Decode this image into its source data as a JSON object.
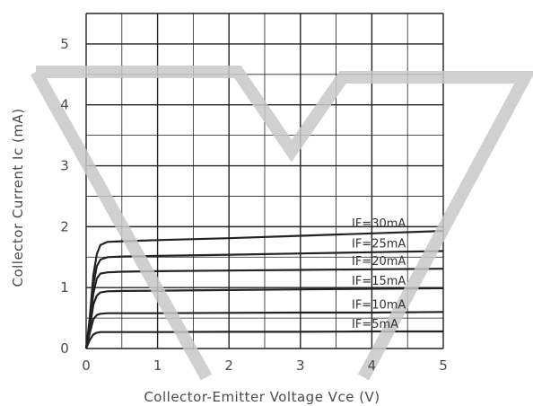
{
  "colors": {
    "background": "#ffffff",
    "grid": "#222222",
    "curves": "#222222",
    "text": "#4a4a4a",
    "watermark": "#c8c8c8"
  },
  "chart_data": {
    "type": "line",
    "title": "",
    "xlabel": "Collector-Emitter Voltage Vce (V)",
    "ylabel": "Collector Current Ic (mA)",
    "xlim": [
      0,
      5
    ],
    "ylim": [
      0,
      5.5
    ],
    "x_ticks": [
      "0",
      "1",
      "2",
      "3",
      "4",
      "5"
    ],
    "y_ticks": [
      "0",
      "1",
      "2",
      "3",
      "4",
      "5"
    ],
    "grid": true,
    "series": [
      {
        "name": "IF=30mA",
        "x": [
          0,
          0.05,
          0.1,
          0.15,
          0.2,
          0.3,
          0.5,
          1,
          2,
          3,
          4,
          5
        ],
        "y": [
          0,
          0.5,
          1.2,
          1.55,
          1.7,
          1.75,
          1.76,
          1.78,
          1.81,
          1.85,
          1.89,
          1.93
        ]
      },
      {
        "name": "IF=25mA",
        "x": [
          0,
          0.05,
          0.1,
          0.15,
          0.2,
          0.3,
          0.5,
          1,
          2,
          3,
          4,
          5
        ],
        "y": [
          0,
          0.45,
          1.05,
          1.35,
          1.46,
          1.5,
          1.51,
          1.52,
          1.54,
          1.56,
          1.58,
          1.6
        ]
      },
      {
        "name": "IF=20mA",
        "x": [
          0,
          0.05,
          0.1,
          0.15,
          0.2,
          0.3,
          0.5,
          1,
          2,
          3,
          4,
          5
        ],
        "y": [
          0,
          0.4,
          0.9,
          1.15,
          1.23,
          1.25,
          1.26,
          1.27,
          1.28,
          1.29,
          1.3,
          1.31
        ]
      },
      {
        "name": "IF=15mA",
        "x": [
          0,
          0.05,
          0.1,
          0.15,
          0.2,
          0.3,
          0.5,
          1,
          2,
          3,
          4,
          5
        ],
        "y": [
          0,
          0.33,
          0.72,
          0.87,
          0.92,
          0.94,
          0.945,
          0.95,
          0.96,
          0.97,
          0.98,
          0.99
        ]
      },
      {
        "name": "IF=10mA",
        "x": [
          0,
          0.05,
          0.1,
          0.15,
          0.2,
          0.3,
          0.5,
          1,
          2,
          3,
          4,
          5
        ],
        "y": [
          0,
          0.25,
          0.48,
          0.55,
          0.57,
          0.58,
          0.58,
          0.58,
          0.585,
          0.59,
          0.59,
          0.6
        ]
      },
      {
        "name": "IF=5mA",
        "x": [
          0,
          0.05,
          0.1,
          0.15,
          0.2,
          0.3,
          0.5,
          1,
          2,
          3,
          4,
          5
        ],
        "y": [
          0,
          0.14,
          0.23,
          0.26,
          0.27,
          0.27,
          0.27,
          0.27,
          0.275,
          0.275,
          0.28,
          0.28
        ]
      }
    ]
  }
}
